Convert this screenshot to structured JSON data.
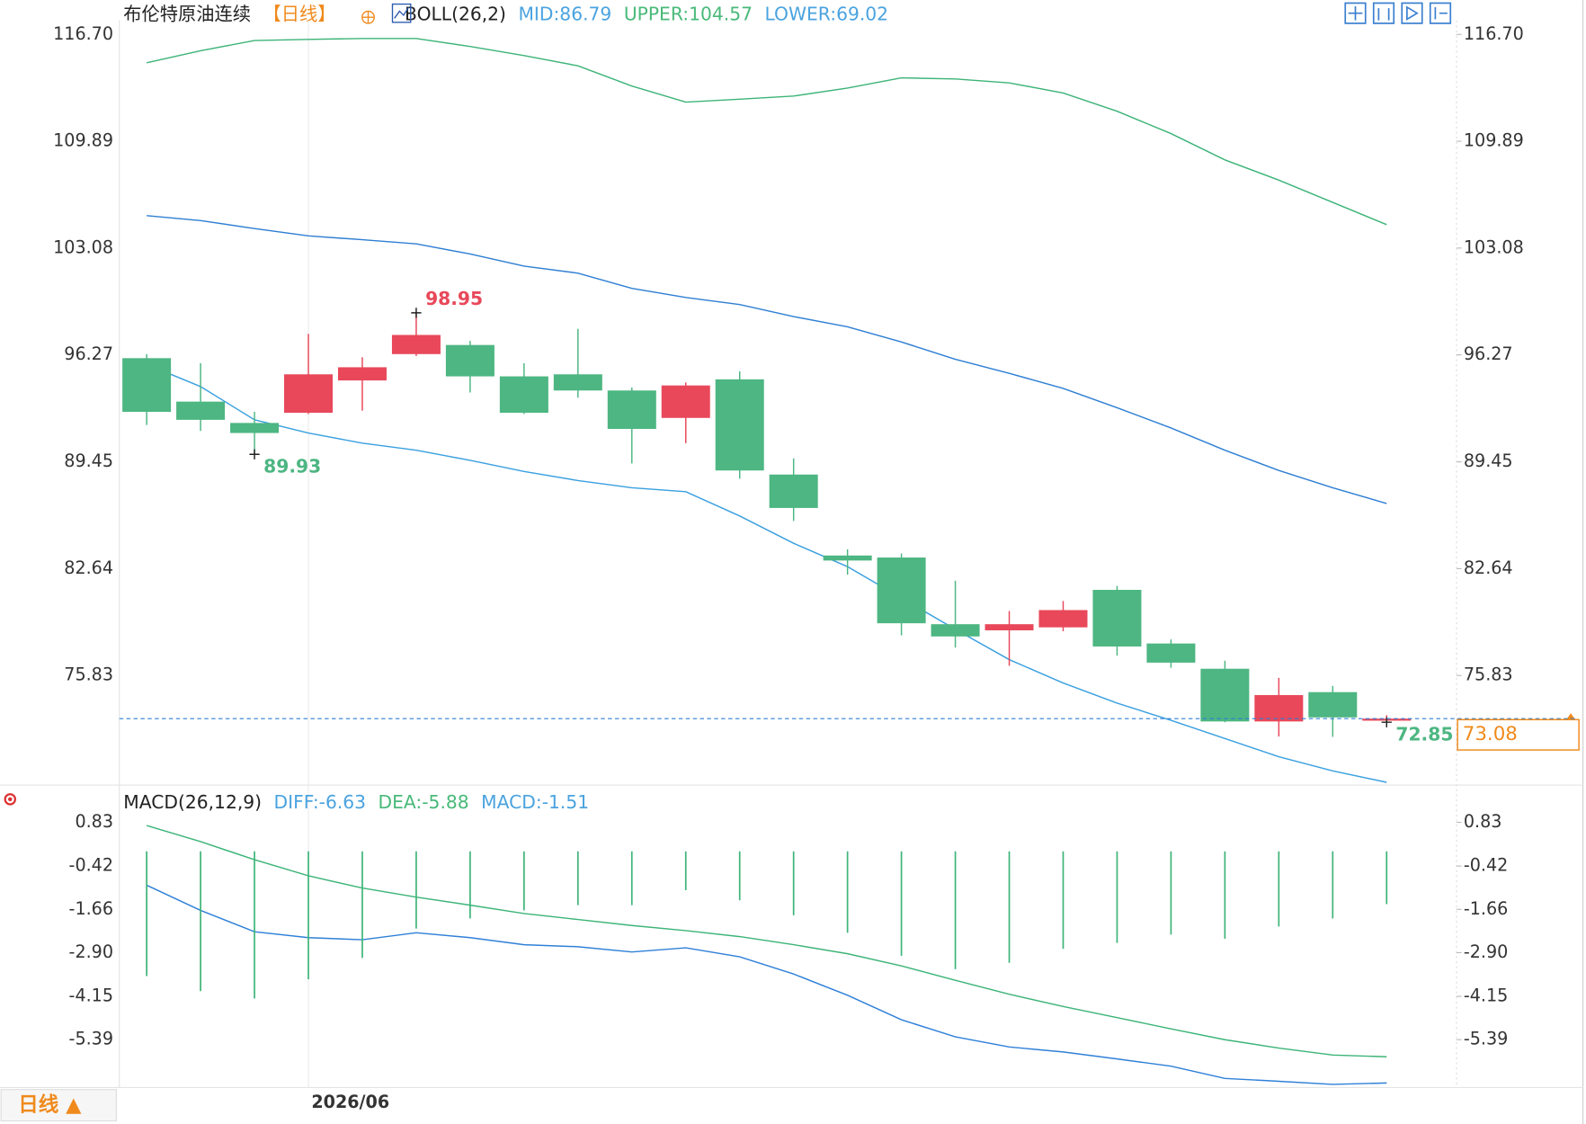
{
  "period_button": "日线 ▲",
  "chart_data": [
    {
      "type": "candlestick",
      "title": "布伦特原油连续",
      "period": "【日线】",
      "indicator": "BOLL(26,2)",
      "categories": [
        null,
        null,
        null,
        "2026/06",
        null,
        null,
        null,
        null,
        null,
        null,
        null,
        null,
        null,
        null,
        null,
        null,
        null,
        null,
        null,
        null,
        null,
        null,
        null,
        null
      ],
      "open": [
        96.06,
        93.29,
        91.93,
        92.58,
        94.64,
        96.32,
        96.9,
        94.9,
        95.03,
        94.0,
        92.25,
        94.71,
        88.64,
        83.48,
        83.35,
        79.1,
        78.71,
        78.9,
        81.29,
        77.87,
        76.26,
        72.9,
        74.77,
        72.95
      ],
      "high": [
        96.32,
        95.74,
        92.64,
        97.61,
        96.12,
        98.95,
        97.16,
        95.74,
        97.93,
        94.19,
        94.51,
        95.22,
        89.67,
        83.87,
        83.61,
        81.87,
        79.94,
        80.58,
        81.55,
        78.13,
        76.77,
        75.68,
        75.16,
        73.3
      ],
      "low": [
        91.8,
        91.42,
        89.93,
        92.5,
        92.71,
        96.2,
        93.87,
        92.5,
        93.54,
        89.35,
        90.64,
        88.38,
        85.68,
        82.26,
        78.39,
        77.61,
        76.45,
        78.65,
        77.1,
        76.32,
        72.85,
        71.94,
        71.92,
        72.85
      ],
      "close": [
        92.64,
        92.13,
        91.29,
        95.03,
        95.48,
        97.54,
        94.9,
        92.58,
        94.0,
        91.55,
        94.32,
        88.9,
        86.51,
        83.16,
        79.16,
        78.32,
        79.1,
        80.0,
        77.68,
        76.65,
        72.9,
        74.58,
        73.16,
        73.08
      ],
      "up_color": "#e8485a",
      "down_color": "#4db682",
      "series": [
        {
          "name": "MID:86.79",
          "color": "#2f7fd3",
          "label_color": "#4aa3df",
          "values": [
            105.15,
            104.83,
            104.32,
            103.86,
            103.61,
            103.35,
            102.7,
            101.93,
            101.48,
            100.51,
            99.93,
            99.48,
            98.71,
            98.06,
            97.09,
            95.99,
            95.09,
            94.13,
            92.9,
            91.61,
            90.19,
            88.9,
            87.8,
            86.79
          ]
        },
        {
          "name": "UPPER:104.57",
          "color": "#3db478",
          "label_color": "#49b979",
          "values": [
            114.89,
            115.66,
            116.31,
            116.38,
            116.44,
            116.44,
            115.93,
            115.35,
            114.7,
            113.41,
            112.38,
            112.57,
            112.77,
            113.28,
            113.93,
            113.86,
            113.61,
            112.96,
            111.8,
            110.38,
            108.7,
            107.41,
            105.99,
            104.57
          ]
        },
        {
          "name": "LOWER:69.02",
          "color": "#3aa0e0",
          "label_color": "#4aa3df",
          "values": [
            95.67,
            94.25,
            92.13,
            91.29,
            90.64,
            90.19,
            89.55,
            88.84,
            88.26,
            87.8,
            87.55,
            86.0,
            84.26,
            82.77,
            80.77,
            78.77,
            76.84,
            75.35,
            74.07,
            72.97,
            71.81,
            70.65,
            69.75,
            69.02
          ]
        }
      ],
      "ylim": [
        68.91,
        117.6
      ],
      "yticks": [
        {
          "value": 116.7,
          "label": "116.70"
        },
        109.89,
        103.08,
        96.27,
        89.45,
        82.64,
        75.83
      ]
    },
    {
      "type": "macd",
      "indicator": "MACD(26,12,9)",
      "series": [
        {
          "name": "DIFF:-6.63",
          "color": "#2f80d8",
          "label_color": "#4aa3df",
          "values": [
            -0.97,
            -1.69,
            -2.3,
            -2.47,
            -2.53,
            -2.33,
            -2.47,
            -2.67,
            -2.73,
            -2.88,
            -2.76,
            -3.02,
            -3.51,
            -4.12,
            -4.82,
            -5.31,
            -5.6,
            -5.74,
            -5.94,
            -6.15,
            -6.5,
            -6.58,
            -6.67,
            -6.63
          ]
        },
        {
          "name": "DEA:-5.88",
          "color": "#3db478",
          "label_color": "#49b979",
          "values": [
            0.74,
            0.28,
            -0.24,
            -0.7,
            -1.05,
            -1.31,
            -1.54,
            -1.78,
            -1.95,
            -2.12,
            -2.27,
            -2.44,
            -2.67,
            -2.93,
            -3.28,
            -3.69,
            -4.09,
            -4.44,
            -4.76,
            -5.08,
            -5.39,
            -5.63,
            -5.83,
            -5.88
          ]
        },
        {
          "name": "MACD:-1.51",
          "type": "bar",
          "color": "#3db478",
          "label_color": "#4aa3df",
          "values": [
            -3.57,
            -4.0,
            -4.21,
            -3.66,
            -3.05,
            -2.21,
            -1.92,
            -1.69,
            -1.54,
            -1.54,
            -1.11,
            -1.4,
            -1.83,
            -2.33,
            -2.99,
            -3.37,
            -3.19,
            -2.79,
            -2.62,
            -2.38,
            -2.5,
            -2.15,
            -1.92,
            -1.51
          ]
        }
      ],
      "ylim": [
        -6.76,
        1.84
      ],
      "yticks": [
        0.83,
        -0.42,
        -1.66,
        {
          "value": -2.9,
          "label": "-2.90"
        },
        -4.15,
        -5.39
      ]
    }
  ]
}
